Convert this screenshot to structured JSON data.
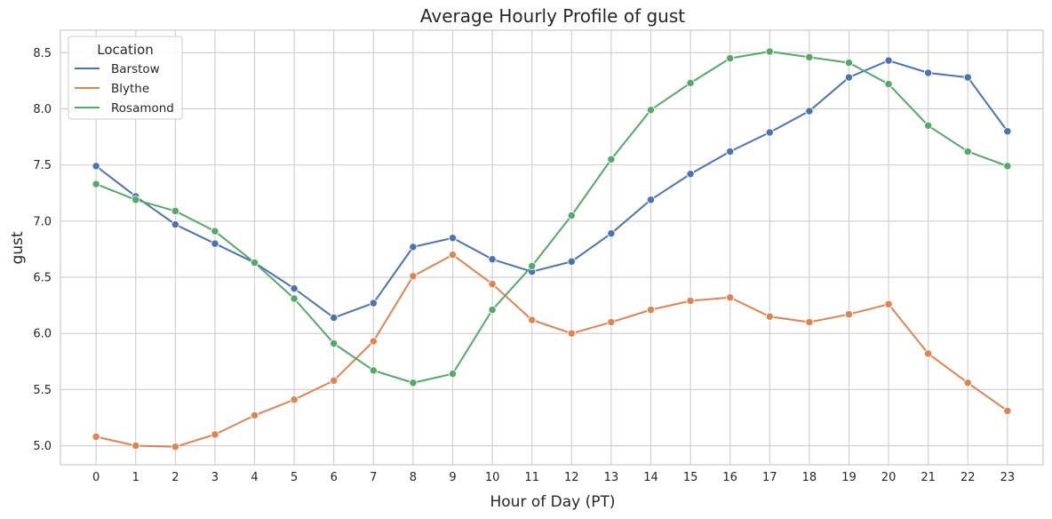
{
  "chart_data": {
    "type": "line",
    "title": "Average Hourly Profile of gust",
    "xlabel": "Hour of Day (PT)",
    "ylabel": "gust",
    "x": [
      0,
      1,
      2,
      3,
      4,
      5,
      6,
      7,
      8,
      9,
      10,
      11,
      12,
      13,
      14,
      15,
      16,
      17,
      18,
      19,
      20,
      21,
      22,
      23
    ],
    "xlim": [
      -0.9,
      23.9
    ],
    "ylim": [
      4.83,
      8.7
    ],
    "yticks": [
      5.0,
      5.5,
      6.0,
      6.5,
      7.0,
      7.5,
      8.0,
      8.5
    ],
    "ytick_labels": [
      "5.0",
      "5.5",
      "6.0",
      "6.5",
      "7.0",
      "7.5",
      "8.0",
      "8.5"
    ],
    "grid": true,
    "legend": {
      "title": "Location",
      "placement": "top-left"
    },
    "series": [
      {
        "name": "Barstow",
        "color": "#4c72b0",
        "values": [
          7.49,
          7.22,
          6.97,
          6.8,
          6.63,
          6.4,
          6.14,
          6.27,
          6.77,
          6.85,
          6.66,
          6.55,
          6.64,
          6.89,
          7.19,
          7.42,
          7.62,
          7.79,
          7.98,
          8.28,
          8.43,
          8.32,
          8.28,
          7.8
        ]
      },
      {
        "name": "Blythe",
        "color": "#dd8452",
        "values": [
          5.08,
          5.0,
          4.99,
          5.1,
          5.27,
          5.41,
          5.58,
          5.93,
          6.51,
          6.7,
          6.44,
          6.12,
          6.0,
          6.1,
          6.21,
          6.29,
          6.32,
          6.15,
          6.1,
          6.17,
          6.26,
          5.82,
          5.56,
          5.31
        ]
      },
      {
        "name": "Rosamond",
        "color": "#55a868",
        "values": [
          7.33,
          7.19,
          7.09,
          6.91,
          6.63,
          6.31,
          5.91,
          5.67,
          5.56,
          5.64,
          6.21,
          6.6,
          7.05,
          7.55,
          7.99,
          8.23,
          8.45,
          8.51,
          8.46,
          8.41,
          8.22,
          7.85,
          7.62,
          7.49
        ]
      }
    ]
  }
}
